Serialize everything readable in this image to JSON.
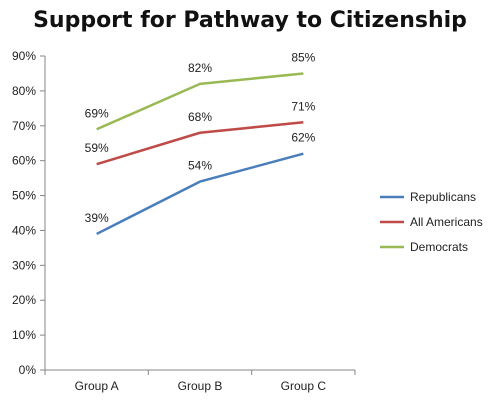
{
  "chart_data": {
    "type": "line",
    "title": "Support for Pathway to Citizenship",
    "xlabel": "",
    "ylabel": "",
    "categories": [
      "Group A",
      "Group B",
      "Group C"
    ],
    "ylim": [
      0,
      90
    ],
    "yticks": [
      0,
      10,
      20,
      30,
      40,
      50,
      60,
      70,
      80,
      90
    ],
    "ytick_labels": [
      "0%",
      "10%",
      "20%",
      "30%",
      "40%",
      "50%",
      "60%",
      "70%",
      "80%",
      "90%"
    ],
    "grid": false,
    "legend_position": "right",
    "series": [
      {
        "name": "Republicans",
        "color": "#4a7ebb",
        "values": [
          39,
          54,
          62
        ],
        "labels": [
          "39%",
          "54%",
          "62%"
        ]
      },
      {
        "name": "All Americans",
        "color": "#be4b48",
        "values": [
          59,
          68,
          71
        ],
        "labels": [
          "59%",
          "68%",
          "71%"
        ]
      },
      {
        "name": "Democrats",
        "color": "#98b954",
        "values": [
          69,
          82,
          85
        ],
        "labels": [
          "69%",
          "82%",
          "85%"
        ]
      }
    ]
  }
}
